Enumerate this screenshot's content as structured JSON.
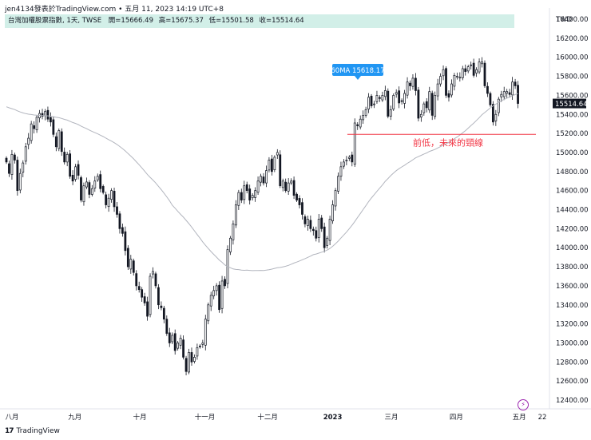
{
  "header": {
    "publisher_line": "jen4134發表於TradingView.com • 五月 11, 2023 14:19 UTC+8"
  },
  "legend": {
    "symbol": "台灣加權股票指數, 1天, TWSE",
    "open": "開=15666.49",
    "high": "高=15675.37",
    "low": "低=15501.58",
    "close": "收=15514.64"
  },
  "footer": {
    "brand": "TradingView",
    "logo_glyph": "17"
  },
  "colors": {
    "up_body": "#ffffff",
    "down_body": "#131722",
    "candle_outline": "#131722",
    "ma_line": "#b2b5be",
    "support_line": "#f23645",
    "ma_badge": "#2196f3",
    "price_badge": "#131722",
    "legend_bg": "#d2efe8"
  },
  "chart_data": {
    "type": "candlestick",
    "y_axis": {
      "currency": "TWD",
      "min": 12400,
      "max": 16400,
      "ticks": [
        12400,
        12600,
        12800,
        13000,
        13200,
        13400,
        13600,
        13800,
        14000,
        14200,
        14400,
        14600,
        14800,
        15000,
        15200,
        15400,
        15600,
        15800,
        16000,
        16200,
        16400
      ],
      "tick_labels": [
        "12400.00",
        "12600.00",
        "12800.00",
        "13000.00",
        "13200.00",
        "13400.00",
        "13600.00",
        "13800.00",
        "14000.00",
        "14200.00",
        "14400.00",
        "14600.00",
        "14800.00",
        "15000.00",
        "15200.00",
        "15400.00",
        "15600.00",
        "15800.00",
        "16000.00",
        "16200.00",
        "16400.00"
      ]
    },
    "x_axis": {
      "labels": [
        "八月",
        "九月",
        "十月",
        "十一月",
        "十二月",
        "2023",
        "三月",
        "四月",
        "五月",
        "22"
      ],
      "label_days": [
        0,
        30,
        61,
        92,
        122,
        153,
        181,
        212,
        242,
        253
      ]
    },
    "ma": {
      "name": "60MA",
      "value_label": "60MA 15618.17"
    },
    "last_price_label": "15514.64",
    "support": {
      "value": 15190,
      "annotation": "前低，未來的頸線",
      "from_day": 160,
      "to_day": 253
    },
    "closes": [
      14900,
      14780,
      14980,
      14920,
      14600,
      14780,
      14890,
      15060,
      15150,
      15300,
      15250,
      15370,
      15410,
      15380,
      15430,
      15350,
      15320,
      15190,
      15060,
      15230,
      15010,
      14900,
      14980,
      14750,
      14700,
      14850,
      14760,
      14500,
      14650,
      14690,
      14560,
      14620,
      14700,
      14750,
      14620,
      14580,
      14450,
      14520,
      14600,
      14430,
      14350,
      14200,
      14150,
      13970,
      13800,
      13880,
      13740,
      13600,
      13560,
      13480,
      13420,
      13280,
      13700,
      13750,
      13600,
      13400,
      13370,
      13250,
      13100,
      13000,
      13080,
      12920,
      13000,
      13050,
      12850,
      12700,
      12900,
      12800,
      12850,
      12950,
      12960,
      13000,
      13250,
      13400,
      13500,
      13550,
      13600,
      13350,
      13650,
      13600,
      13980,
      14100,
      14250,
      14450,
      14580,
      14500,
      14650,
      14600,
      14500,
      14550,
      14600,
      14700,
      14750,
      14680,
      14810,
      14920,
      14800,
      14950,
      15000,
      14650,
      14700,
      14600,
      14680,
      14700,
      14550,
      14500,
      14450,
      14350,
      14250,
      14300,
      14200,
      14180,
      14100,
      14300,
      14200,
      14000,
      14100,
      14300,
      14450,
      14600,
      14750,
      14850,
      14900,
      14920,
      14950,
      14900,
      15310,
      15280,
      15350,
      15390,
      15450,
      15580,
      15490,
      15510,
      15600,
      15570,
      15600,
      15650,
      15380,
      15450,
      15600,
      15630,
      15520,
      15540,
      15620,
      15740,
      15700,
      15780,
      15650,
      15360,
      15400,
      15510,
      15470,
      15640,
      15390,
      15600,
      15720,
      15800,
      15870,
      15600,
      15580,
      15720,
      15810,
      15800,
      15790,
      15880,
      15850,
      15900,
      15920,
      15810,
      15870,
      15950,
      15950,
      15700,
      15620,
      15500,
      15320,
      15400,
      15560,
      15610,
      15640,
      15640,
      15610,
      15740,
      15700,
      15514.64
    ]
  }
}
